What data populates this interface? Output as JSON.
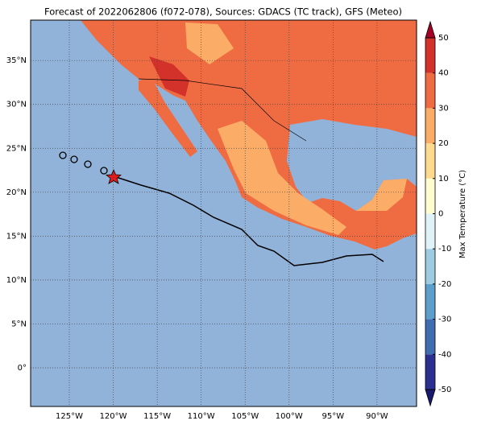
{
  "map": {
    "title": "Forecast of 2022062806 (f072-078), Sources: GDACS (TC track), GFS (Meteo)",
    "xlim": [
      -129.4,
      -85.5
    ],
    "ylim": [
      -4.4,
      39.6
    ],
    "xticks": [
      {
        "value": -125,
        "label": "125°W"
      },
      {
        "value": -120,
        "label": "120°W"
      },
      {
        "value": -115,
        "label": "115°W"
      },
      {
        "value": -110,
        "label": "110°W"
      },
      {
        "value": -105,
        "label": "105°W"
      },
      {
        "value": -100,
        "label": "100°W"
      },
      {
        "value": -95,
        "label": "95°W"
      },
      {
        "value": -90,
        "label": "90°W"
      }
    ],
    "yticks": [
      {
        "value": 0,
        "label": "0°"
      },
      {
        "value": 5,
        "label": "5°N"
      },
      {
        "value": 10,
        "label": "10°N"
      },
      {
        "value": 15,
        "label": "15°N"
      },
      {
        "value": 20,
        "label": "20°N"
      },
      {
        "value": 25,
        "label": "25°N"
      },
      {
        "value": 30,
        "label": "30°N"
      },
      {
        "value": 35,
        "label": "35°N"
      }
    ],
    "colorbar": {
      "label": "Max Temperature (°C)",
      "lim": [
        -50,
        50
      ],
      "ticks": [
        -50,
        -40,
        -30,
        -20,
        -10,
        0,
        10,
        20,
        30,
        40,
        50
      ],
      "colors": [
        "#2b2f8f",
        "#3f6db0",
        "#5d9fcb",
        "#9ccbe2",
        "#dff2f7",
        "#fffdd0",
        "#fed98e",
        "#fbad68",
        "#ef6c43",
        "#d3322b"
      ],
      "under": "#1a1a6e",
      "over": "#a50026"
    }
  }
}
